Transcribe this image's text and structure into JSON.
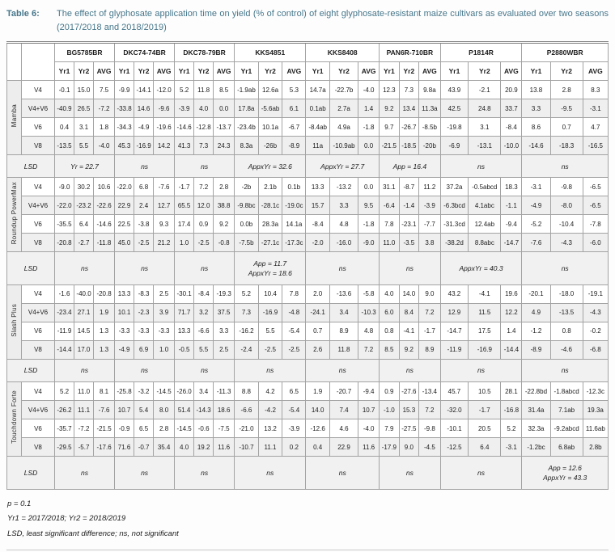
{
  "title": {
    "label": "Table 6:",
    "text": "The effect of glyphosate application time on yield (% of control) of eight glyphosate-resistant maize cultivars as evaluated over two seasons (2017/2018 and 2018/2019)"
  },
  "table": {
    "cultivars": [
      "BG5785BR",
      "DKC74-74BR",
      "DKC78-79BR",
      "KKS4851",
      "KKS8408",
      "PAN6R-710BR",
      "P1814R",
      "P2880WBR"
    ],
    "year_headers": [
      "Yr1",
      "Yr2",
      "AVG"
    ],
    "lsd_label": "LSD",
    "groups": [
      {
        "name": "Mamba",
        "rows": [
          {
            "time": "V4",
            "values": [
              "-0.1",
              "15.0",
              "7.5",
              "-9.9",
              "-14.1",
              "-12.0",
              "5.2",
              "11.8",
              "8.5",
              "-1.9ab",
              "12.6a",
              "5.3",
              "14.7a",
              "-22.7b",
              "-4.0",
              "12.3",
              "7.3",
              "9.8a",
              "43.9",
              "-2.1",
              "20.9",
              "13.8",
              "2.8",
              "8.3"
            ]
          },
          {
            "time": "V4+V6",
            "values": [
              "-40.9",
              "26.5",
              "-7.2",
              "-33.8",
              "14.6",
              "-9.6",
              "-3.9",
              "4.0",
              "0.0",
              "17.8a",
              "-5.6ab",
              "6.1",
              "0.1ab",
              "2.7a",
              "1.4",
              "9.2",
              "13.4",
              "11.3a",
              "42.5",
              "24.8",
              "33.7",
              "3.3",
              "-9.5",
              "-3.1"
            ]
          },
          {
            "time": "V6",
            "values": [
              "0.4",
              "3.1",
              "1.8",
              "-34.3",
              "-4.9",
              "-19.6",
              "-14.6",
              "-12.8",
              "-13.7",
              "-23.4b",
              "10.1a",
              "-6.7",
              "-8.4ab",
              "4.9a",
              "-1.8",
              "9.7",
              "-26.7",
              "-8.5b",
              "-19.8",
              "3.1",
              "-8.4",
              "8.6",
              "0.7",
              "4.7"
            ]
          },
          {
            "time": "V8",
            "values": [
              "-13.5",
              "5.5",
              "-4.0",
              "45.3",
              "-16.9",
              "14.2",
              "41.3",
              "7.3",
              "24.3",
              "8.3a",
              "-26b",
              "-8.9",
              "11a",
              "-10.9ab",
              "0.0",
              "-21.5",
              "-18.5",
              "-20b",
              "-6.9",
              "-13.1",
              "-10.0",
              "-14.6",
              "-18.3",
              "-16.5"
            ]
          }
        ],
        "lsd": [
          "Yr = 22.7",
          "ns",
          "ns",
          "AppxYr = 32.6",
          "AppxYr = 27.7",
          "App = 16.4",
          "ns",
          "ns"
        ]
      },
      {
        "name": "Roundup PowerMax",
        "rows": [
          {
            "time": "V4",
            "values": [
              "-9.0",
              "30.2",
              "10.6",
              "-22.0",
              "6.8",
              "-7.6",
              "-1.7",
              "7.2",
              "2.8",
              "-2b",
              "2.1b",
              "0.1b",
              "13.3",
              "-13.2",
              "0.0",
              "31.1",
              "-8.7",
              "11.2",
              "37.2a",
              "-0.5abcd",
              "18.3",
              "-3.1",
              "-9.8",
              "-6.5"
            ]
          },
          {
            "time": "V4+V6",
            "values": [
              "-22.0",
              "-23.2",
              "-22.6",
              "22.9",
              "2.4",
              "12.7",
              "65.5",
              "12.0",
              "38.8",
              "-9.8bc",
              "-28.1c",
              "-19.0c",
              "15.7",
              "3.3",
              "9.5",
              "-6.4",
              "-1.4",
              "-3.9",
              "-6.3bcd",
              "4.1abc",
              "-1.1",
              "-4.9",
              "-8.0",
              "-6.5"
            ]
          },
          {
            "time": "V6",
            "values": [
              "-35.5",
              "6.4",
              "-14.6",
              "22.5",
              "-3.8",
              "9.3",
              "17.4",
              "0.9",
              "9.2",
              "0.0b",
              "28.3a",
              "14.1a",
              "-8.4",
              "4.8",
              "-1.8",
              "7.8",
              "-23.1",
              "-7.7",
              "-31.3cd",
              "12.4ab",
              "-9.4",
              "-5.2",
              "-10.4",
              "-7.8"
            ]
          },
          {
            "time": "V8",
            "values": [
              "-20.8",
              "-2.7",
              "-11.8",
              "45.0",
              "-2.5",
              "21.2",
              "1.0",
              "-2.5",
              "-0.8",
              "-7.5b",
              "-27.1c",
              "-17.3c",
              "-2.0",
              "-16.0",
              "-9.0",
              "11.0",
              "-3.5",
              "3.8",
              "-38.2d",
              "8.8abc",
              "-14.7",
              "-7.6",
              "-4.3",
              "-6.0"
            ]
          }
        ],
        "lsd": [
          "ns",
          "ns",
          "ns",
          "App = 11.7\nAppxYr = 18.6",
          "ns",
          "ns",
          "AppxYr = 40.3",
          "ns"
        ]
      },
      {
        "name": "Slash Plus",
        "rows": [
          {
            "time": "V4",
            "values": [
              "-1.6",
              "-40.0",
              "-20.8",
              "13.3",
              "-8.3",
              "2.5",
              "-30.1",
              "-8.4",
              "-19.3",
              "5.2",
              "10.4",
              "7.8",
              "2.0",
              "-13.6",
              "-5.8",
              "4.0",
              "14.0",
              "9.0",
              "43.2",
              "-4.1",
              "19.6",
              "-20.1",
              "-18.0",
              "-19.1"
            ]
          },
          {
            "time": "V4+V6",
            "values": [
              "-23.4",
              "27.1",
              "1.9",
              "10.1",
              "-2.3",
              "3.9",
              "71.7",
              "3.2",
              "37.5",
              "7.3",
              "-16.9",
              "-4.8",
              "-24.1",
              "3.4",
              "-10.3",
              "6.0",
              "8.4",
              "7.2",
              "12.9",
              "11.5",
              "12.2",
              "4.9",
              "-13.5",
              "-4.3"
            ]
          },
          {
            "time": "V6",
            "values": [
              "-11.9",
              "14.5",
              "1.3",
              "-3.3",
              "-3.3",
              "-3.3",
              "13.3",
              "-6.6",
              "3.3",
              "-16.2",
              "5.5",
              "-5.4",
              "0.7",
              "8.9",
              "4.8",
              "0.8",
              "-4.1",
              "-1.7",
              "-14.7",
              "17.5",
              "1.4",
              "-1.2",
              "0.8",
              "-0.2"
            ]
          },
          {
            "time": "V8",
            "values": [
              "-14.4",
              "17.0",
              "1.3",
              "-4.9",
              "6.9",
              "1.0",
              "-0.5",
              "5.5",
              "2.5",
              "-2.4",
              "-2.5",
              "-2.5",
              "2.6",
              "11.8",
              "7.2",
              "8.5",
              "9.2",
              "8.9",
              "-11.9",
              "-16.9",
              "-14.4",
              "-8.9",
              "-4.6",
              "-6.8"
            ]
          }
        ],
        "lsd": [
          "ns",
          "ns",
          "ns",
          "ns",
          "ns",
          "ns",
          "ns",
          "ns"
        ]
      },
      {
        "name": "Touchdown Forte",
        "rows": [
          {
            "time": "V4",
            "values": [
              "5.2",
              "11.0",
              "8.1",
              "-25.8",
              "-3.2",
              "-14.5",
              "-26.0",
              "3.4",
              "-11.3",
              "8.8",
              "4.2",
              "6.5",
              "1.9",
              "-20.7",
              "-9.4",
              "0.9",
              "-27.6",
              "-13.4",
              "45.7",
              "10.5",
              "28.1",
              "-22.8bd",
              "-1.8abcd",
              "-12.3c"
            ]
          },
          {
            "time": "V4+V6",
            "values": [
              "-26.2",
              "11.1",
              "-7.6",
              "10.7",
              "5.4",
              "8.0",
              "51.4",
              "-14.3",
              "18.6",
              "-6.6",
              "-4.2",
              "-5.4",
              "14.0",
              "7.4",
              "10.7",
              "-1.0",
              "15.3",
              "7.2",
              "-32.0",
              "-1.7",
              "-16.8",
              "31.4a",
              "7.1ab",
              "19.3a"
            ]
          },
          {
            "time": "V6",
            "values": [
              "-35.7",
              "-7.2",
              "-21.5",
              "-0.9",
              "6.5",
              "2.8",
              "-14.5",
              "-0.6",
              "-7.5",
              "-21.0",
              "13.2",
              "-3.9",
              "-12.6",
              "4.6",
              "-4.0",
              "7.9",
              "-27.5",
              "-9.8",
              "-10.1",
              "20.5",
              "5.2",
              "32.3a",
              "-9.2abcd",
              "11.6ab"
            ]
          },
          {
            "time": "V8",
            "values": [
              "-29.5",
              "-5.7",
              "-17.6",
              "71.6",
              "-0.7",
              "35.4",
              "4.0",
              "19.2",
              "11.6",
              "-10.7",
              "11.1",
              "0.2",
              "0.4",
              "22.9",
              "11.6",
              "-17.9",
              "9.0",
              "-4.5",
              "-12.5",
              "6.4",
              "-3.1",
              "-1.2bc",
              "6.8ab",
              "2.8b"
            ]
          }
        ],
        "lsd": [
          "ns",
          "ns",
          "ns",
          "ns",
          "ns",
          "ns",
          "ns",
          "App = 12.6\nAppxYr = 43.3"
        ]
      }
    ]
  },
  "footnotes": [
    "p = 0.1",
    "Yr1 = 2017/2018; Yr2 = 2018/2019",
    "LSD, least significant difference; ns, not significant"
  ]
}
